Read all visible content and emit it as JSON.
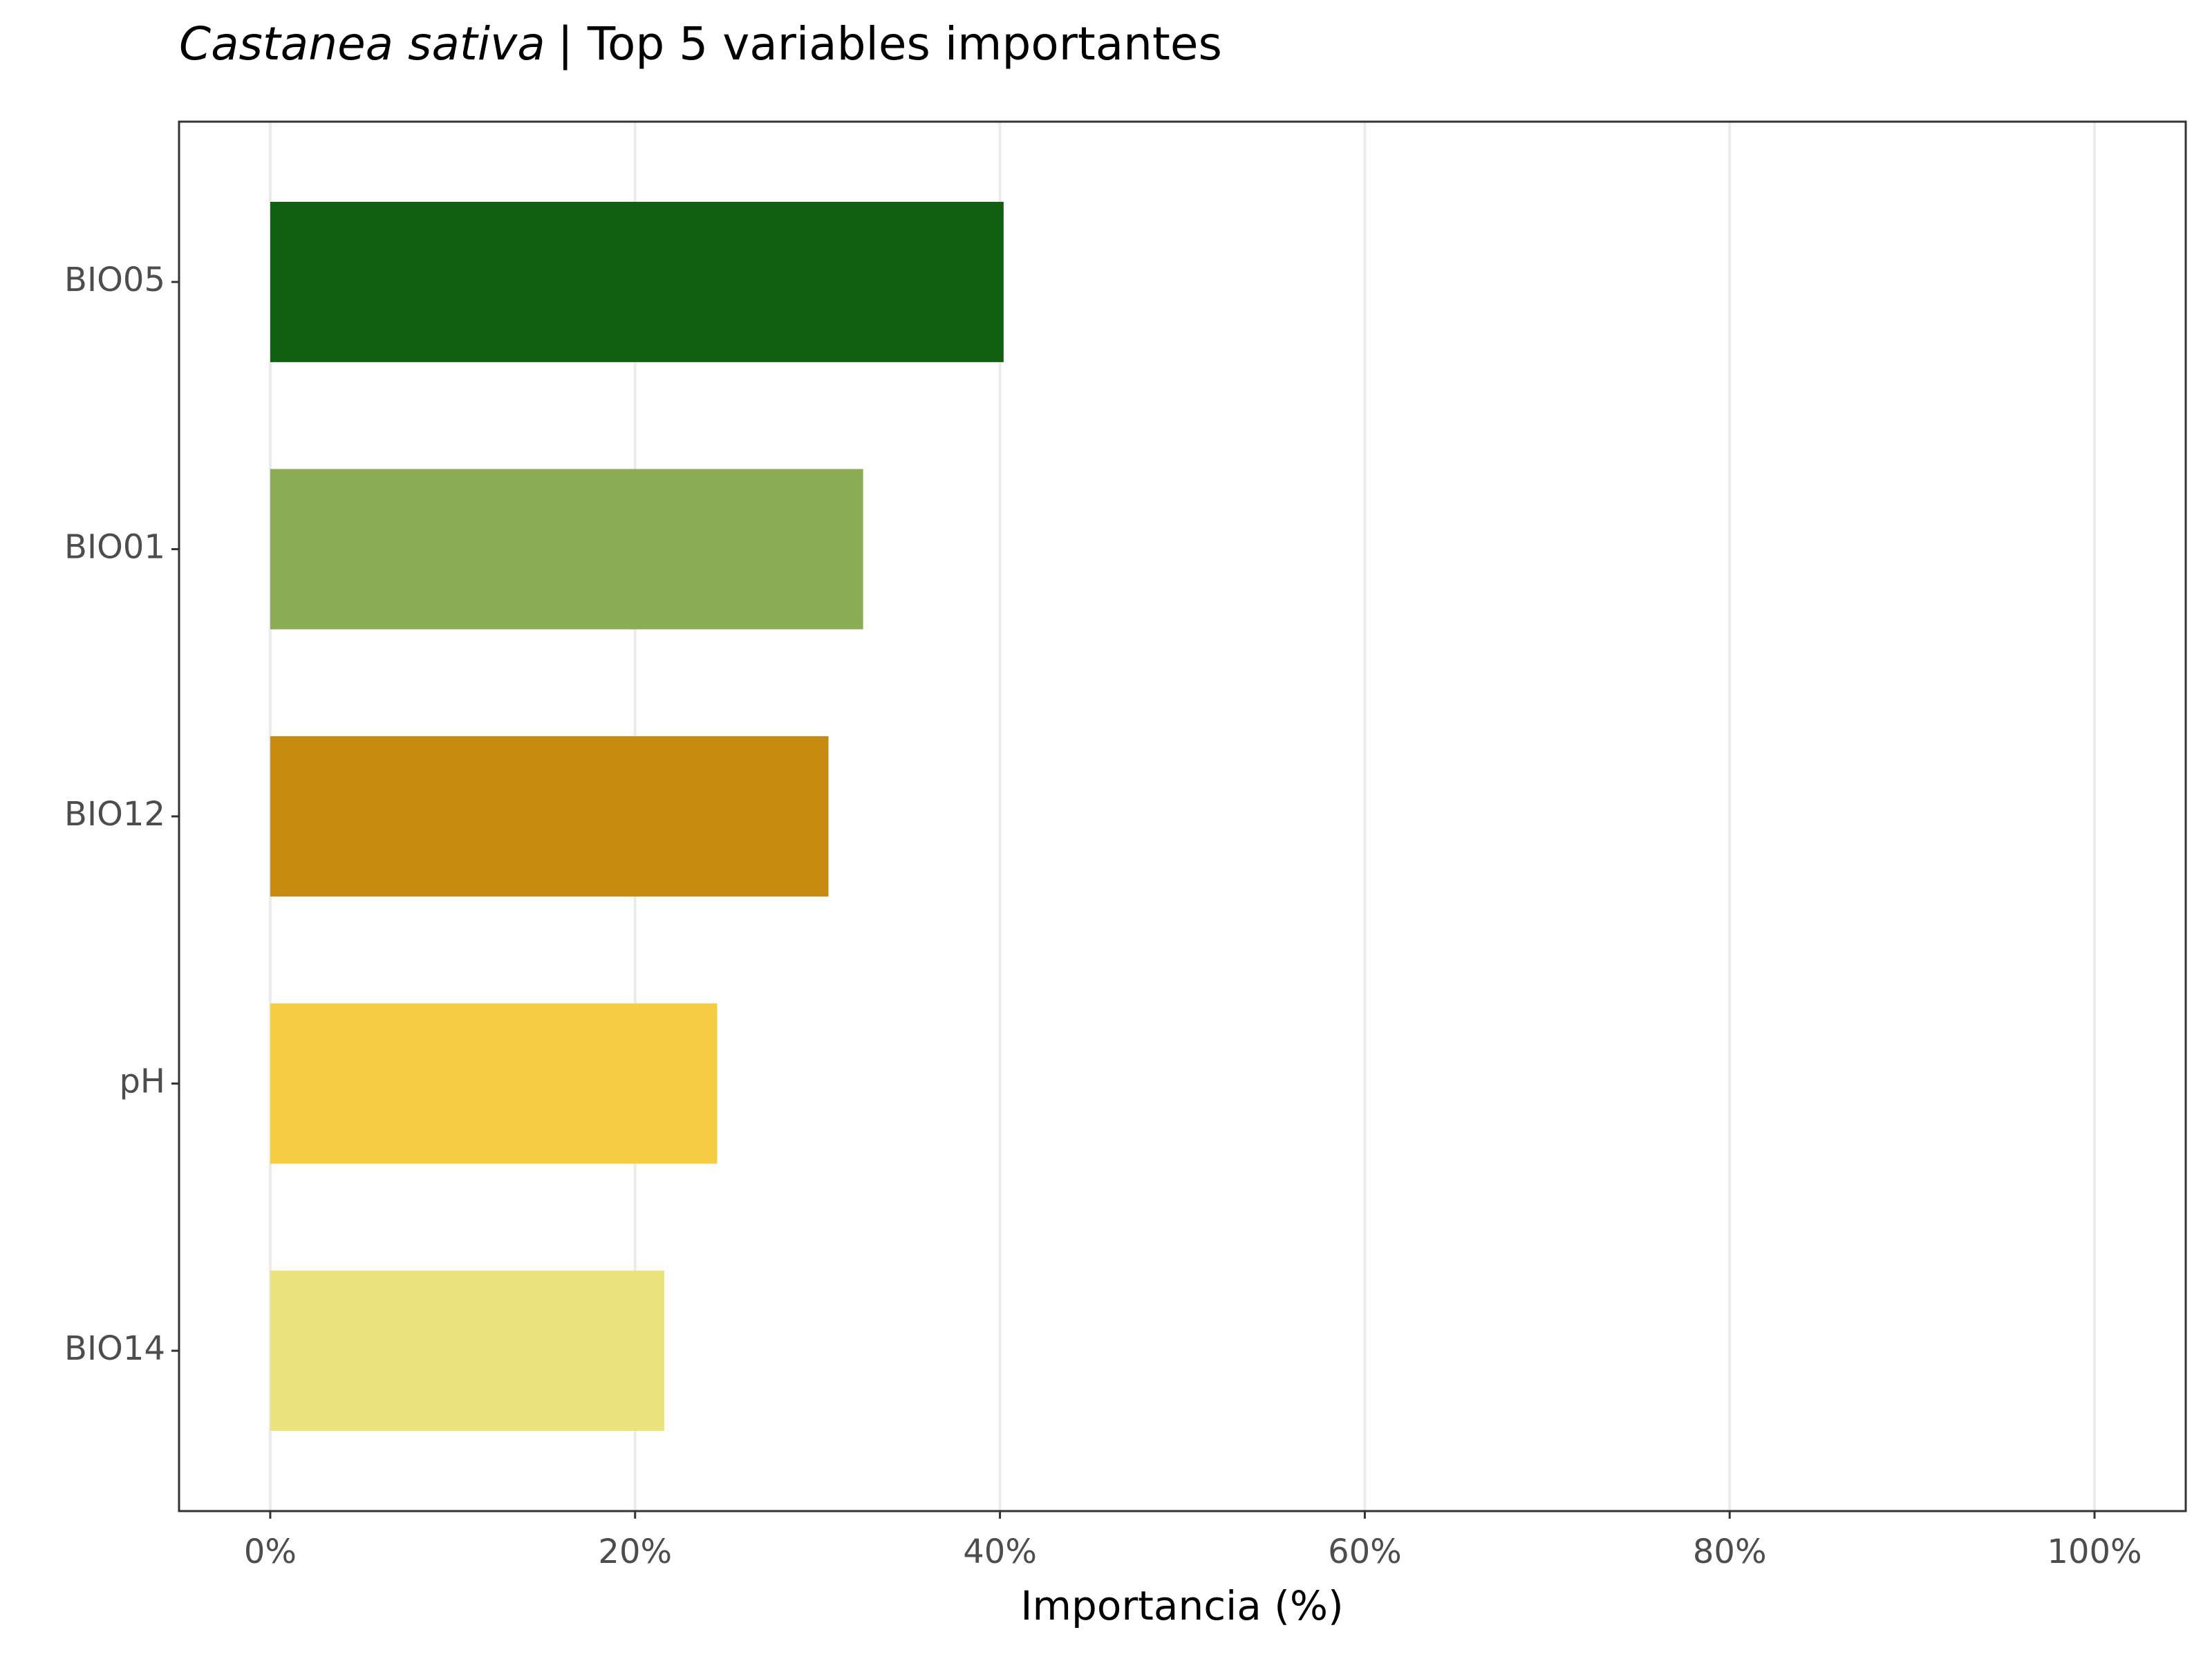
{
  "chart_data": {
    "type": "bar",
    "orientation": "horizontal",
    "title": {
      "species": "Castanea sativa",
      "text": "| Top 5 variables importantes"
    },
    "x_label": "Importancia (%)",
    "categories": [
      "BIO05",
      "BIO01",
      "BIO12",
      "pH",
      "BIO14"
    ],
    "values": [
      40.2,
      32.5,
      30.6,
      24.5,
      21.6
    ],
    "colors": [
      "#116011",
      "#8aad55",
      "#c98b0f",
      "#f6cc42",
      "#ede37c"
    ],
    "xlim": [
      -5,
      105
    ],
    "xticks": [
      {
        "value": 0,
        "label": "0%"
      },
      {
        "value": 20,
        "label": "20%"
      },
      {
        "value": 40,
        "label": "40%"
      },
      {
        "value": 60,
        "label": "60%"
      },
      {
        "value": 80,
        "label": "80%"
      },
      {
        "value": 100,
        "label": "100%"
      }
    ],
    "grid": true
  }
}
